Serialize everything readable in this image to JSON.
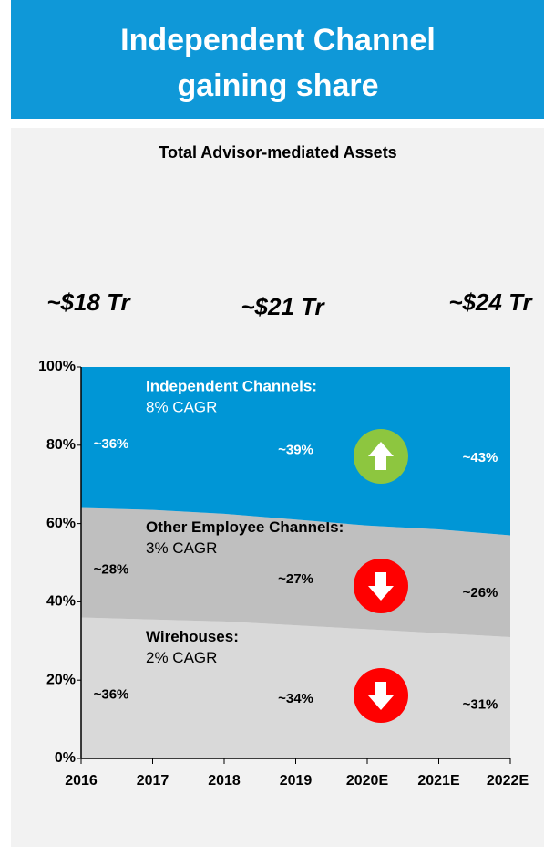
{
  "chart_data": {
    "type": "stacked_area",
    "title": [
      "Independent Channel",
      "gaining share"
    ],
    "subtitle": "Total Advisor-mediated Assets",
    "categories": [
      "2016",
      "2017",
      "2018",
      "2019",
      "2020E",
      "2021E",
      "2022E"
    ],
    "totals": [
      "~$18 Tr",
      "~$21 Tr",
      "~$24 Tr"
    ],
    "series": [
      {
        "name": "Wirehouses:",
        "note": "2% CAGR",
        "color": "#d9d9d9",
        "label_color": "#000000",
        "trend": "down",
        "values": [
          36,
          35.5,
          35,
          34,
          33,
          32,
          31
        ],
        "value_labels": [
          "~36%",
          null,
          null,
          "~34%",
          null,
          null,
          "~31%"
        ]
      },
      {
        "name": "Other Employee Channels:",
        "note": "3% CAGR",
        "color": "#bfbfbf",
        "label_color": "#000000",
        "trend": "down",
        "values": [
          28,
          28,
          27.5,
          27,
          26.5,
          26.5,
          26
        ],
        "value_labels": [
          "~28%",
          null,
          null,
          "~27%",
          null,
          null,
          "~26%"
        ]
      },
      {
        "name": "Independent Channels:",
        "note": "8% CAGR",
        "color": "#0096d6",
        "label_color": "#ffffff",
        "trend": "up",
        "values": [
          36,
          36.5,
          37.5,
          39,
          40.5,
          41.5,
          43
        ],
        "value_labels": [
          "~36%",
          null,
          null,
          "~39%",
          null,
          null,
          "~43%"
        ]
      }
    ],
    "ylim": [
      0,
      100
    ],
    "yticks": [
      {
        "value": 0,
        "label": "0%"
      },
      {
        "value": 20,
        "label": "20%"
      },
      {
        "value": 40,
        "label": "40%"
      },
      {
        "value": 60,
        "label": "60%"
      },
      {
        "value": 80,
        "label": "80%"
      },
      {
        "value": 100,
        "label": "100%"
      }
    ]
  }
}
